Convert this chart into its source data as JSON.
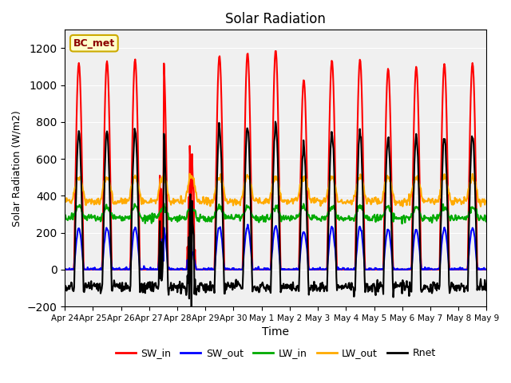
{
  "title": "Solar Radiation",
  "xlabel": "Time",
  "ylabel": "Solar Radiation (W/m2)",
  "ylim": [
    -200,
    1300
  ],
  "yticks": [
    -200,
    0,
    200,
    400,
    600,
    800,
    1000,
    1200
  ],
  "station_label": "BC_met",
  "series": {
    "SW_in": {
      "color": "#ff0000",
      "lw": 1.5
    },
    "SW_out": {
      "color": "#0000ff",
      "lw": 1.5
    },
    "LW_in": {
      "color": "#00aa00",
      "lw": 1.5
    },
    "LW_out": {
      "color": "#ffaa00",
      "lw": 1.5
    },
    "Rnet": {
      "color": "#000000",
      "lw": 1.5
    }
  },
  "xtick_labels": [
    "Apr 24",
    "Apr 25",
    "Apr 26",
    "Apr 27",
    "Apr 28",
    "Apr 29",
    "Apr 30",
    "May 1",
    "May 2",
    "May 3",
    "May 4",
    "May 5",
    "May 6",
    "May 7",
    "May 8",
    "May 9"
  ],
  "n_days": 15,
  "pts_per_day": 48,
  "background_color": "#f0f0f0"
}
